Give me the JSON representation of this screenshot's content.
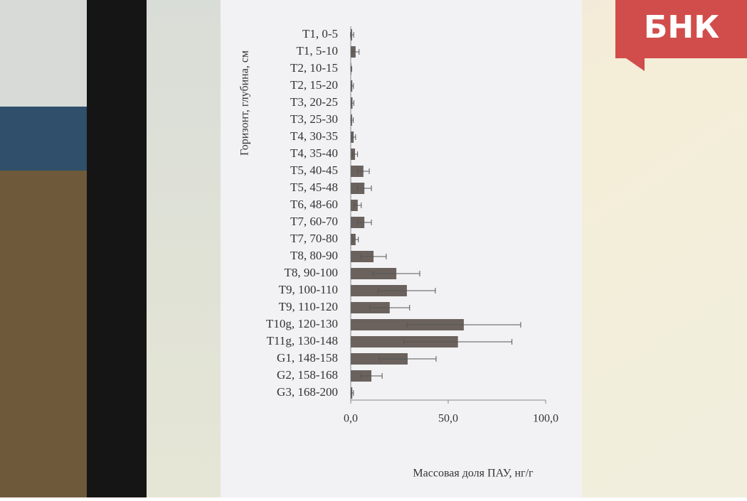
{
  "watermark": "БНК",
  "chart_data": {
    "type": "bar",
    "orientation": "horizontal",
    "x_label": "Массовая доля ПАУ, нг/г",
    "y_label": "Горизонт, глубина, см",
    "categories": [
      "T1, 0-5",
      "T1, 5-10",
      "T2, 10-15",
      "T2, 15-20",
      "T3, 20-25",
      "T3, 25-30",
      "T4, 30-35",
      "T4, 35-40",
      "T5, 40-45",
      "T5, 45-48",
      "T6, 48-60",
      "T7, 60-70",
      "T7, 70-80",
      "T8, 80-90",
      "T8, 90-100",
      "T9, 100-110",
      "T9, 110-120",
      "T10g, 120-130",
      "T11g, 130-148",
      "G1, 148-158",
      "G2, 158-168",
      "G3, 168-200"
    ],
    "values": [
      0.7,
      2.5,
      0.3,
      0.8,
      0.9,
      0.7,
      1.5,
      2.2,
      6.5,
      7,
      3.6,
      7,
      2.5,
      11.7,
      23.4,
      28.8,
      20,
      58,
      55,
      29.2,
      10.6,
      0.8
    ],
    "errors": [
      0.8,
      1.8,
      0.2,
      0.6,
      0.7,
      0.6,
      1,
      1.3,
      3,
      3.6,
      1.8,
      3.6,
      1.4,
      6.5,
      12,
      14.6,
      10.2,
      29.2,
      27.7,
      14.6,
      5.5,
      0.6
    ],
    "color": "#6b625e",
    "xlim": [
      0,
      100
    ],
    "xticks": [
      {
        "value": 0,
        "label": "0,0"
      },
      {
        "value": 50,
        "label": "50,0"
      },
      {
        "value": 100,
        "label": "100,0"
      }
    ]
  }
}
